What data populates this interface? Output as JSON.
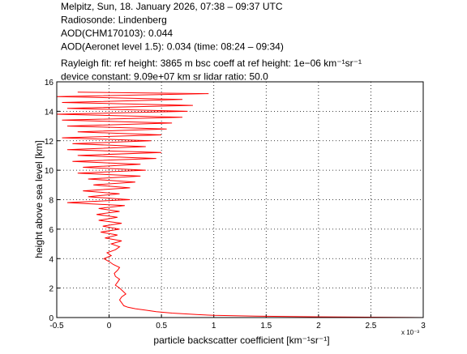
{
  "chart_data": {
    "type": "line",
    "title_lines": [
      "Melpitz, Sun, 18. January 2026, 07:38 – 09:37 UTC",
      "Radiosonde: Lindenberg",
      "AOD(CHM170103): 0.044",
      "AOD(Aeronet level 1.5): 0.034   (time: 08:24 – 09:34)",
      "Rayleigh fit:     ref height: 3865 m     bsc coeff at ref height: 1e−06 km⁻¹sr⁻¹",
      "device constant: 9.09e+07 km sr     lidar ratio: 50.0"
    ],
    "xlabel": "particle backscatter coefficient [km⁻¹sr⁻¹]",
    "ylabel": "height above sea level [km]",
    "x_multiplier": "x 10⁻³",
    "color": "#ff0000",
    "xlim": [
      -0.5,
      3
    ],
    "xticks": [
      -0.5,
      0,
      0.5,
      1,
      1.5,
      2,
      2.5,
      3
    ],
    "ylim": [
      0,
      16
    ],
    "yticks": [
      0,
      2,
      4,
      6,
      8,
      10,
      12,
      14,
      16
    ],
    "grid": true,
    "x": [
      3.0,
      2.0,
      1.4,
      1.0,
      0.85,
      0.6,
      0.45,
      0.35,
      0.25,
      0.18,
      0.14,
      0.12,
      0.1,
      0.12,
      0.16,
      0.13,
      0.1,
      0.06,
      0.08,
      0.1,
      0.06,
      0.05,
      0.08,
      0.1,
      0.04,
      0.0,
      -0.05,
      0.02,
      -0.02,
      0.06,
      0.1,
      0.02,
      0.12,
      -0.04,
      0.08,
      -0.08,
      0.1,
      -0.06,
      0.12,
      -0.1,
      0.08,
      -0.12,
      0.1,
      -0.1,
      0.15,
      -0.4,
      0.2,
      -0.2,
      0.1,
      -0.25,
      0.2,
      -0.15,
      0.25,
      -0.2,
      0.3,
      -0.3,
      0.35,
      -0.25,
      0.3,
      -0.35,
      0.45,
      -0.3,
      0.5,
      -0.4,
      0.35,
      -0.35,
      0.4,
      -0.45,
      0.5,
      -0.3,
      0.55,
      -0.4,
      0.6,
      -0.45,
      0.7,
      -0.5,
      0.75,
      -0.4,
      0.8,
      -0.45,
      0.7,
      -0.5,
      0.95,
      -0.3
    ],
    "values": [
      0,
      0.05,
      0.1,
      0.15,
      0.2,
      0.3,
      0.4,
      0.5,
      0.6,
      0.7,
      0.8,
      1.0,
      1.2,
      1.4,
      1.6,
      1.8,
      2.0,
      2.2,
      2.4,
      2.6,
      2.8,
      3.0,
      3.2,
      3.4,
      3.6,
      3.8,
      4.0,
      4.2,
      4.4,
      4.6,
      4.8,
      5.0,
      5.2,
      5.4,
      5.6,
      5.8,
      6.0,
      6.2,
      6.4,
      6.6,
      6.8,
      7.0,
      7.2,
      7.4,
      7.6,
      7.8,
      8.0,
      8.2,
      8.4,
      8.6,
      8.8,
      9.0,
      9.2,
      9.4,
      9.6,
      9.8,
      10.0,
      10.2,
      10.4,
      10.6,
      10.8,
      11.0,
      11.2,
      11.4,
      11.6,
      11.8,
      12.0,
      12.2,
      12.4,
      12.6,
      12.8,
      13.0,
      13.2,
      13.4,
      13.6,
      13.8,
      14.0,
      14.2,
      14.4,
      14.6,
      14.8,
      15.0,
      15.2,
      15.3
    ]
  }
}
